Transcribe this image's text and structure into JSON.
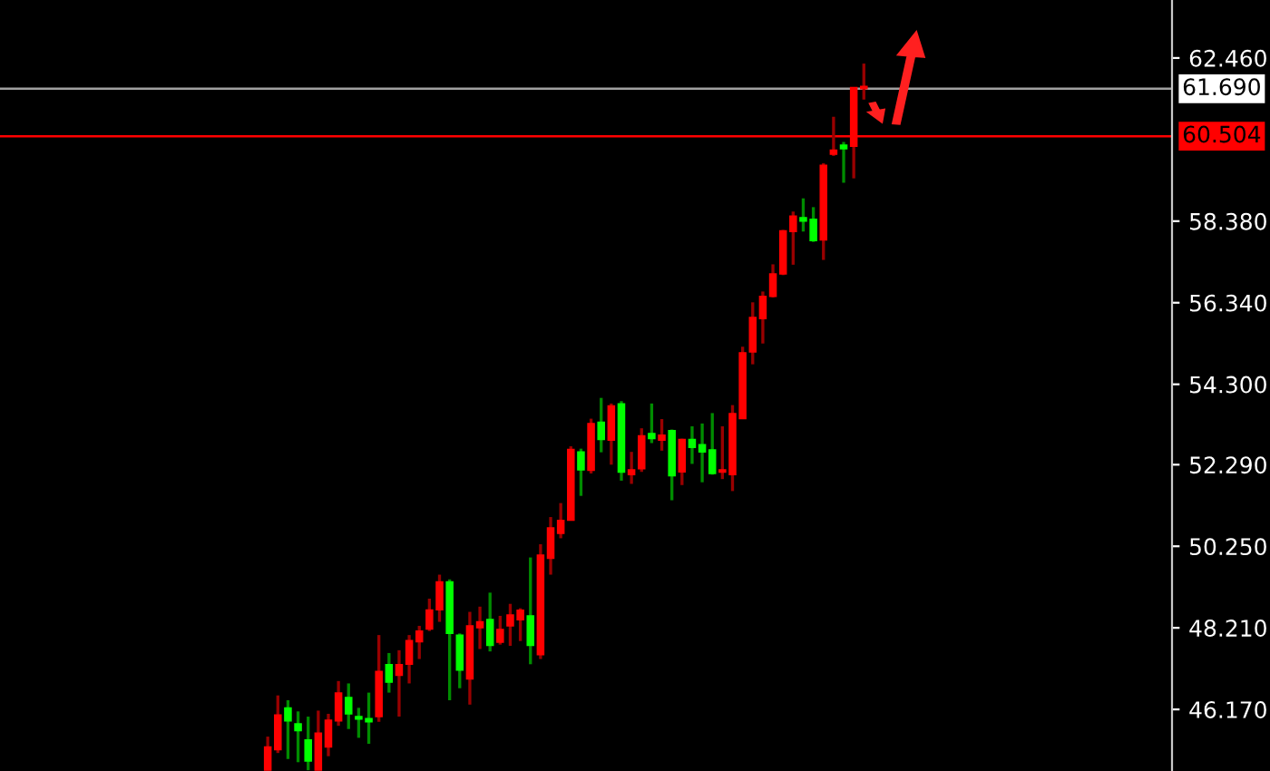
{
  "chart_data": {
    "type": "candlestick",
    "categories": [
      null,
      null,
      null,
      null,
      null,
      null,
      null,
      null,
      null,
      null,
      null,
      null,
      null,
      null,
      null,
      null,
      null,
      null,
      null,
      null,
      null,
      null,
      null,
      null,
      null,
      null,
      null,
      null,
      null,
      null,
      null,
      null,
      null,
      null,
      null,
      null,
      null,
      null,
      null,
      null,
      null,
      null,
      null,
      null,
      null,
      null,
      null,
      null,
      null,
      null,
      null,
      null,
      null,
      null,
      null,
      null,
      null,
      null,
      null,
      null,
      null,
      null,
      null,
      null,
      null,
      null,
      null,
      null,
      null,
      null,
      null,
      null,
      null,
      null,
      null,
      null,
      null,
      null,
      null,
      null,
      null,
      null,
      null,
      null,
      null,
      null,
      null,
      null,
      null,
      null,
      null,
      null,
      null,
      null,
      null,
      null,
      null,
      null,
      null,
      null,
      null,
      null,
      null,
      null,
      null,
      null,
      null,
      null,
      null,
      null,
      null,
      null,
      null,
      null,
      null,
      null
    ],
    "ohlc": [
      null,
      null,
      null,
      null,
      null,
      null,
      null,
      null,
      null,
      null,
      null,
      null,
      null,
      null,
      null,
      null,
      null,
      null,
      null,
      null,
      null,
      null,
      null,
      null,
      null,
      null,
      [
        44.65,
        45.49,
        44.65,
        45.23
      ],
      [
        45.16,
        46.52,
        45.08,
        46.03
      ],
      [
        46.21,
        46.4,
        44.93,
        45.88
      ],
      [
        45.81,
        46.12,
        44.85,
        45.64
      ],
      [
        45.41,
        45.99,
        44.65,
        44.88
      ],
      [
        44.65,
        46.14,
        44.65,
        45.58
      ],
      [
        45.23,
        46.06,
        45.0,
        45.9
      ],
      [
        45.88,
        46.88,
        45.76,
        46.58
      ],
      [
        46.47,
        46.82,
        45.68,
        46.06
      ],
      [
        45.99,
        46.21,
        45.46,
        45.93
      ],
      [
        45.94,
        46.59,
        45.31,
        45.86
      ],
      [
        45.99,
        48.03,
        45.86,
        47.12
      ],
      [
        47.29,
        47.58,
        46.59,
        46.85
      ],
      [
        47.02,
        47.65,
        45.99,
        47.29
      ],
      [
        47.3,
        48.03,
        46.82,
        47.89
      ],
      [
        47.86,
        48.26,
        47.43,
        48.13
      ],
      [
        48.18,
        48.94,
        48.13,
        48.66
      ],
      [
        48.66,
        49.54,
        48.36,
        49.36
      ],
      [
        49.36,
        49.42,
        46.4,
        48.07
      ],
      [
        48.03,
        48.07,
        46.7,
        47.15
      ],
      [
        46.93,
        48.61,
        46.29,
        48.26
      ],
      [
        48.21,
        48.74,
        47.68,
        48.36
      ],
      [
        48.42,
        49.09,
        47.62,
        47.77
      ],
      [
        47.85,
        48.51,
        47.79,
        48.17
      ],
      [
        48.26,
        48.81,
        47.76,
        48.53
      ],
      [
        48.41,
        48.7,
        47.88,
        48.65
      ],
      [
        48.51,
        49.97,
        47.3,
        47.77
      ],
      [
        47.54,
        50.3,
        47.43,
        50.03
      ],
      [
        49.95,
        50.98,
        49.54,
        50.71
      ],
      [
        50.57,
        51.33,
        50.45,
        50.9
      ],
      [
        50.9,
        52.75,
        50.9,
        52.67
      ],
      [
        52.61,
        52.69,
        51.51,
        52.16
      ],
      [
        52.15,
        53.44,
        52.07,
        53.32
      ],
      [
        53.35,
        53.96,
        52.6,
        52.92
      ],
      [
        52.9,
        53.82,
        52.29,
        53.76
      ],
      [
        53.81,
        53.88,
        51.89,
        52.1
      ],
      [
        52.04,
        52.61,
        51.81,
        52.16
      ],
      [
        52.19,
        53.2,
        52.11,
        53.01
      ],
      [
        53.07,
        53.82,
        52.83,
        52.94
      ],
      [
        52.9,
        53.43,
        52.64,
        53.03
      ],
      [
        53.14,
        53.17,
        51.4,
        52.01
      ],
      [
        52.11,
        52.94,
        51.78,
        52.92
      ],
      [
        52.92,
        53.25,
        52.31,
        52.72
      ],
      [
        52.79,
        53.32,
        51.85,
        52.61
      ],
      [
        52.66,
        53.58,
        52.04,
        52.07
      ],
      [
        52.1,
        53.25,
        51.93,
        52.16
      ],
      [
        52.04,
        53.78,
        51.63,
        53.57
      ],
      [
        53.44,
        55.24,
        53.44,
        55.09
      ],
      [
        55.11,
        56.35,
        54.8,
        55.97
      ],
      [
        55.94,
        56.62,
        55.32,
        56.5
      ],
      [
        56.5,
        57.3,
        56.47,
        57.06
      ],
      [
        57.06,
        58.16,
        57.03,
        58.14
      ],
      [
        58.12,
        58.62,
        57.29,
        58.51
      ],
      [
        58.47,
        58.95,
        58.12,
        58.38
      ],
      [
        58.43,
        58.73,
        57.86,
        57.89
      ],
      [
        57.91,
        59.83,
        57.41,
        59.78
      ],
      [
        60.05,
        60.99,
        60.01,
        60.16
      ],
      [
        60.28,
        60.36,
        59.34,
        60.19
      ],
      [
        60.25,
        61.72,
        59.45,
        61.72
      ],
      [
        61.69,
        62.32,
        61.42,
        61.75
      ],
      null,
      null,
      null,
      null,
      null,
      null,
      null,
      null,
      null,
      null,
      null,
      null,
      null,
      null,
      null,
      null,
      null,
      null,
      null,
      null,
      null,
      null,
      null,
      null,
      null,
      null,
      null,
      null,
      null,
      null
    ],
    "colors": [
      null,
      null,
      null,
      null,
      null,
      null,
      null,
      null,
      null,
      null,
      null,
      null,
      null,
      null,
      null,
      null,
      null,
      null,
      null,
      null,
      null,
      null,
      null,
      null,
      null,
      null,
      "#ff0000",
      "#ff0000",
      "#00ff00",
      "#00ff00",
      "#00ff00",
      "#ff0000",
      "#ff0000",
      "#ff0000",
      "#00ff00",
      "#00ff00",
      "#00ff00",
      "#ff0000",
      "#00ff00",
      "#ff0000",
      "#ff0000",
      "#ff0000",
      "#ff0000",
      "#ff0000",
      "#00ff00",
      "#00ff00",
      "#ff0000",
      "#ff0000",
      "#00ff00",
      "#ff0000",
      "#ff0000",
      "#ff0000",
      "#00ff00",
      "#ff0000",
      "#ff0000",
      "#ff0000",
      "#ff0000",
      "#00ff00",
      "#ff0000",
      "#00ff00",
      "#ff0000",
      "#00ff00",
      "#ff0000",
      "#ff0000",
      "#00ff00",
      "#ff0000",
      "#00ff00",
      "#ff0000",
      "#00ff00",
      "#00ff00",
      "#00ff00",
      "#ff0000",
      "#ff0000",
      "#ff0000",
      "#ff0000",
      "#ff0000",
      "#ff0000",
      "#ff0000",
      "#ff0000",
      "#00ff00",
      "#00ff00",
      "#ff0000",
      "#ff0000",
      "#00ff00",
      "#ff0000",
      "#ff0000",
      null,
      null,
      null,
      null,
      null,
      null,
      null,
      null,
      null,
      null,
      null,
      null,
      null,
      null,
      null,
      null,
      null,
      null,
      null,
      null,
      null,
      null,
      null,
      null,
      null,
      null,
      null,
      null,
      null,
      null
    ],
    "ylim": [
      44.63,
      63.91
    ],
    "yticks": [
      {
        "value": 46.17,
        "label": "46.170"
      },
      {
        "value": 48.21,
        "label": "48.210"
      },
      {
        "value": 50.25,
        "label": "50.250"
      },
      {
        "value": 52.29,
        "label": "52.290"
      },
      {
        "value": 54.3,
        "label": "54.300"
      },
      {
        "value": 56.34,
        "label": "56.340"
      },
      {
        "value": 58.38,
        "label": "58.380"
      },
      {
        "value": 62.46,
        "label": "62.460"
      }
    ],
    "ref_lines": [
      {
        "axis": "y",
        "value": 61.69,
        "label": "61.690",
        "color": "#a0a0a0"
      },
      {
        "axis": "y",
        "value": 60.504,
        "label": "60.504",
        "color": "#ff0000"
      }
    ]
  }
}
